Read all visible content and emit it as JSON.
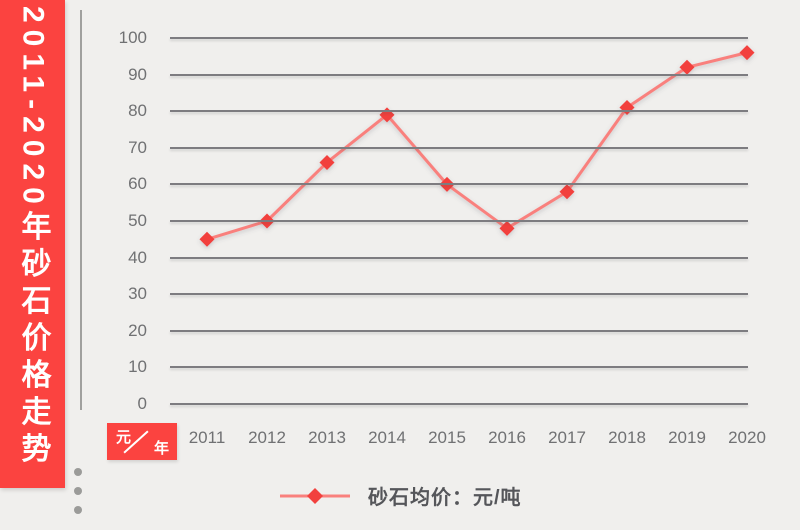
{
  "banner": {
    "title": "2011-2020年砂石价格走势"
  },
  "unit_box": {
    "numerator": "元",
    "denominator": "年"
  },
  "legend": {
    "label": "砂石均价：元/吨"
  },
  "colors": {
    "bg": "#f0efed",
    "banner_red": "#fb4340",
    "line": "#f9807d",
    "marker": "#f2413e",
    "grid": "#7d7c80",
    "tick_label": "#707173",
    "legend_text": "#55565a",
    "dot": "#9b9b99",
    "axis_line": "#a0a09e"
  },
  "chart_data": {
    "type": "line",
    "title": "2011-2020年砂石价格走势",
    "categories": [
      "2011",
      "2012",
      "2013",
      "2014",
      "2015",
      "2016",
      "2017",
      "2018",
      "2019",
      "2020"
    ],
    "series": [
      {
        "name": "砂石均价",
        "unit": "元/吨",
        "values": [
          45,
          50,
          66,
          79,
          60,
          48,
          58,
          81,
          92,
          96
        ]
      }
    ],
    "xlabel": "年",
    "ylabel": "元",
    "ylim": [
      0,
      100
    ],
    "yticks": [
      0,
      10,
      20,
      30,
      40,
      50,
      60,
      70,
      80,
      90,
      100
    ],
    "grid": true,
    "marker": "diamond",
    "legend_position": "bottom"
  }
}
